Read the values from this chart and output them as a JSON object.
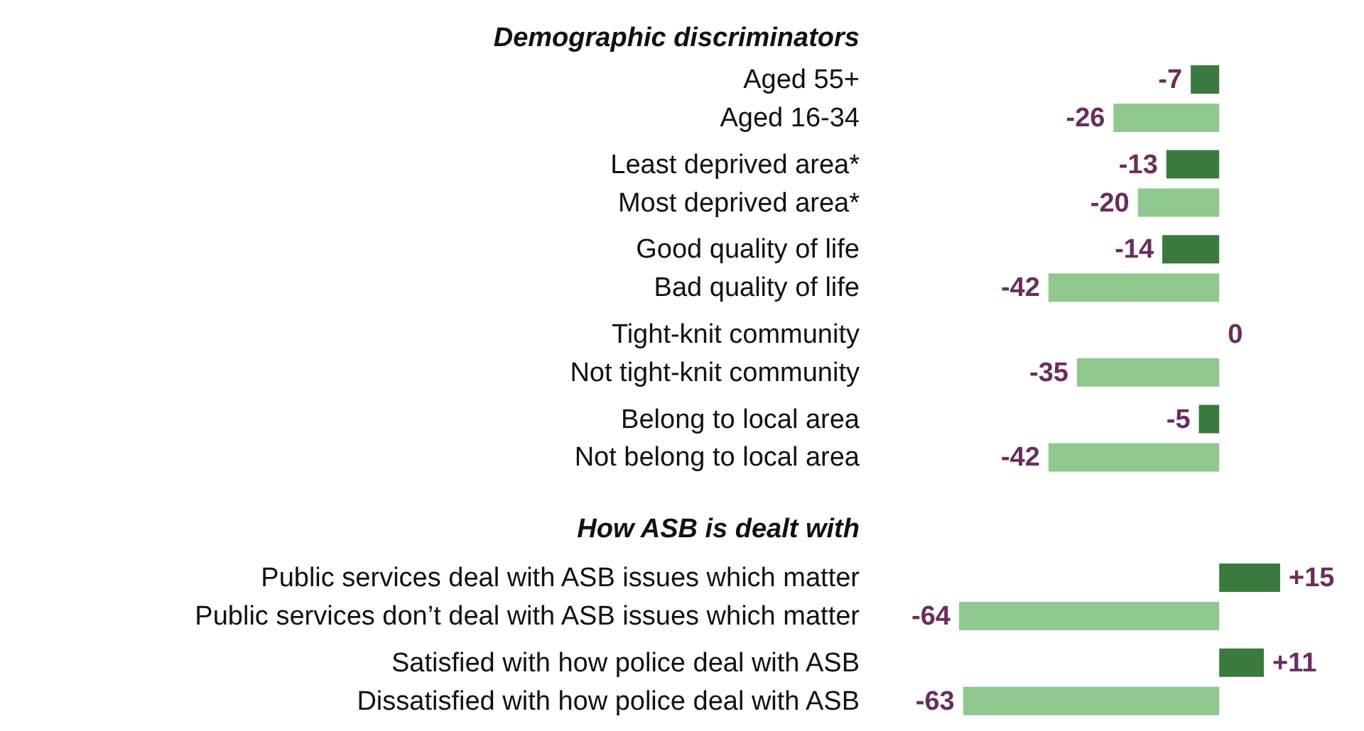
{
  "chart_data": {
    "type": "bar",
    "orientation": "horizontal",
    "annotations": [
      "Demographic discriminators",
      "How ASB is dealt with"
    ],
    "categories": [
      "Aged 55+",
      "Aged 16-34",
      "Least deprived area*",
      "Most deprived area*",
      "Good quality of life",
      "Bad quality of life",
      "Tight-knit community",
      "Not tight-knit community",
      "Belong to local area",
      "Not belong to local area",
      "Public services deal with ASB issues which matter",
      "Public services don’t deal with ASB issues which matter",
      "Satisfied with how police deal with ASB",
      "Dissatisfied with how police deal with ASB"
    ],
    "values": [
      -7,
      -26,
      -13,
      -20,
      -14,
      -42,
      0,
      -35,
      -5,
      -42,
      15,
      -64,
      11,
      -63
    ],
    "value_labels": [
      "-7",
      "-26",
      "-13",
      "-20",
      "-14",
      "-42",
      "0",
      "-35",
      "-5",
      "-42",
      "+15",
      "-64",
      "+11",
      "-63"
    ],
    "colors": [
      "#3a7a3e",
      "#90c890",
      "#3a7a3e",
      "#90c890",
      "#3a7a3e",
      "#90c890",
      "#3a7a3e",
      "#90c890",
      "#3a7a3e",
      "#90c890",
      "#3a7a3e",
      "#90c890",
      "#3a7a3e",
      "#90c890"
    ]
  }
}
